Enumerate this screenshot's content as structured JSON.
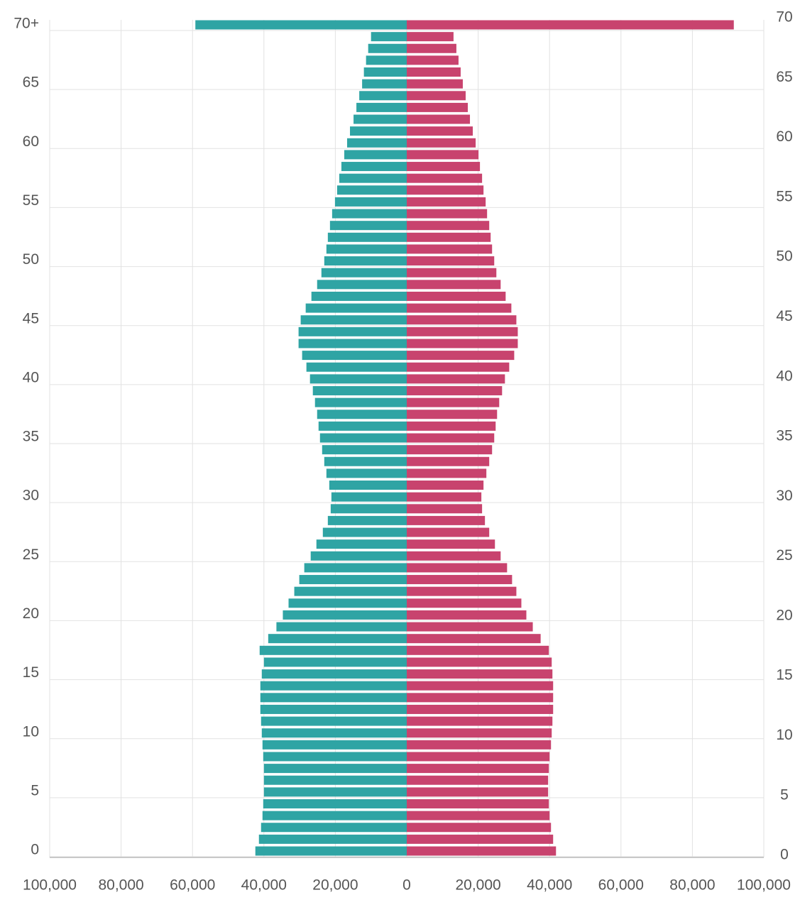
{
  "chart_data": {
    "type": "pyramid",
    "categories": [
      "0",
      null,
      null,
      null,
      null,
      "5",
      null,
      null,
      null,
      null,
      "10",
      null,
      null,
      null,
      null,
      "15",
      null,
      null,
      null,
      null,
      "20",
      null,
      null,
      null,
      null,
      "25",
      null,
      null,
      null,
      null,
      "30",
      null,
      null,
      null,
      null,
      "35",
      null,
      null,
      null,
      null,
      "40",
      null,
      null,
      null,
      null,
      "45",
      null,
      null,
      null,
      null,
      "50",
      null,
      null,
      null,
      null,
      "55",
      null,
      null,
      null,
      null,
      "60",
      null,
      null,
      null,
      null,
      "65",
      null,
      null,
      null,
      null,
      "70+"
    ],
    "series": [
      {
        "color": "#2fa4a4",
        "values": [
          -42400,
          -41400,
          -40800,
          -40400,
          -40200,
          -40000,
          -40000,
          -40000,
          -40200,
          -40400,
          -40600,
          -40800,
          -41000,
          -41000,
          -41000,
          -40600,
          -40000,
          -41200,
          -38800,
          -36500,
          -34700,
          -33100,
          -31500,
          -30100,
          -28700,
          -26900,
          -25300,
          -23500,
          -22100,
          -21300,
          -21100,
          -21700,
          -22500,
          -23100,
          -23700,
          -24300,
          -24700,
          -25100,
          -25700,
          -26300,
          -27100,
          -28100,
          -29300,
          -30300,
          -30300,
          -29700,
          -28300,
          -26700,
          -25100,
          -23900,
          -23100,
          -22500,
          -22100,
          -21500,
          -20900,
          -20100,
          -19500,
          -18900,
          -18300,
          -17500,
          -16700,
          -15900,
          -14900,
          -14100,
          -13300,
          -12500,
          -12000,
          -11400,
          -10800,
          -10000,
          -59200
        ]
      },
      {
        "color": "#c8436e",
        "values": [
          41800,
          41000,
          40400,
          40000,
          39800,
          39600,
          39600,
          39800,
          40000,
          40400,
          40600,
          40800,
          41000,
          41000,
          41000,
          40800,
          40600,
          39800,
          37500,
          35300,
          33500,
          32100,
          30700,
          29500,
          28100,
          26300,
          24700,
          23100,
          21900,
          21100,
          20900,
          21500,
          22300,
          23100,
          23900,
          24500,
          24900,
          25300,
          25900,
          26700,
          27500,
          28700,
          30100,
          31100,
          31100,
          30700,
          29300,
          27700,
          26300,
          25100,
          24500,
          23900,
          23500,
          23100,
          22500,
          22100,
          21500,
          21100,
          20500,
          20100,
          19300,
          18500,
          17700,
          17100,
          16500,
          15700,
          15100,
          14500,
          13900,
          13100,
          91600
        ]
      }
    ],
    "xlim": [
      -100000,
      100000
    ],
    "xticks": [
      {
        "value": -100000,
        "label": "100,000"
      },
      {
        "value": -80000,
        "label": "80,000"
      },
      {
        "value": -60000,
        "label": "60,000"
      },
      {
        "value": -40000,
        "label": "40,000"
      },
      {
        "value": -20000,
        "label": "20,000"
      },
      0,
      {
        "value": 20000,
        "label": "20,000"
      },
      {
        "value": 40000,
        "label": "40,000"
      },
      {
        "value": 60000,
        "label": "60,000"
      },
      {
        "value": 80000,
        "label": "80,000"
      },
      {
        "value": 100000,
        "label": "100,000"
      }
    ],
    "y2lim": [
      0,
      70
    ],
    "y2ticks": [
      0,
      5,
      10,
      15,
      20,
      25,
      30,
      35,
      40,
      45,
      50,
      55,
      60,
      65,
      70
    ],
    "grid": true
  }
}
